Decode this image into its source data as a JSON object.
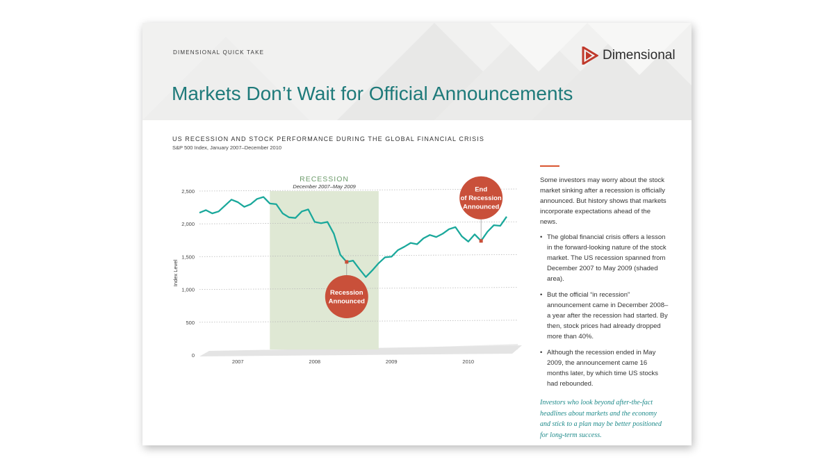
{
  "header": {
    "eyebrow": "DIMENSIONAL QUICK TAKE",
    "brand": "Dimensional",
    "headline": "Markets Don’t Wait for Official Announcements"
  },
  "chart_data": {
    "type": "line",
    "title": "US RECESSION AND STOCK PERFORMANCE DURING THE GLOBAL FINANCIAL CRISIS",
    "subtitle": "S&P 500 Index, January 2007–December 2010",
    "ylabel": "Index Level",
    "xlabel": "",
    "ylim": [
      0,
      2500
    ],
    "yticks": [
      0,
      500,
      1000,
      1500,
      2000,
      2500
    ],
    "ytick_labels": [
      "0",
      "500",
      "1,000",
      "1,500",
      "2,000",
      "2,500"
    ],
    "xtick_labels": [
      "2007",
      "2008",
      "2009",
      "2010"
    ],
    "grid": true,
    "series": [
      {
        "values": [
          2170,
          2210,
          2160,
          2190,
          2280,
          2370,
          2330,
          2260,
          2300,
          2380,
          2410,
          2310,
          2300,
          2160,
          2100,
          2090,
          2190,
          2220,
          2030,
          2010,
          2030,
          1850,
          1530,
          1420,
          1440,
          1310,
          1190,
          1290,
          1400,
          1490,
          1500,
          1600,
          1650,
          1710,
          1690,
          1780,
          1830,
          1800,
          1850,
          1920,
          1950,
          1810,
          1730,
          1840,
          1740,
          1880,
          1980,
          1970,
          2110
        ],
        "start": "2007-01",
        "end": "2010-12",
        "color": "#1aa89b"
      }
    ],
    "shaded_region": {
      "label": "RECESSION",
      "sublabel": "December 2007–May 2009",
      "start": "2007-12",
      "end": "2009-05",
      "color": "#dfe8d4"
    },
    "annotations": [
      {
        "line1": "Recession",
        "line2": "Announced",
        "date": "2008-12",
        "color": "#c9503a"
      },
      {
        "line1": "End",
        "line2": "of Recession",
        "line3": "Announced",
        "date": "2010-09",
        "color": "#c9503a"
      }
    ]
  },
  "sidebar": {
    "intro": "Some investors may worry about the stock market sinking after a recession is officially announced. But history shows that markets incorporate expectations ahead of the news.",
    "bullets": [
      "The global financial crisis offers a lesson in the forward-looking nature of the stock market. The US recession spanned from December 2007 to May 2009 (shaded area).",
      "But the official “in recession” announcement came in December 2008–a year after the recession had started. By then, stock prices had already dropped more than 40%.",
      "Although the recession ended in May 2009, the announcement came 16 months later, by which time US stocks had rebounded."
    ],
    "closing": "Investors who look beyond after-the-fact headlines about markets and the economy and stick to a plan may be better positioned for long-term success."
  }
}
